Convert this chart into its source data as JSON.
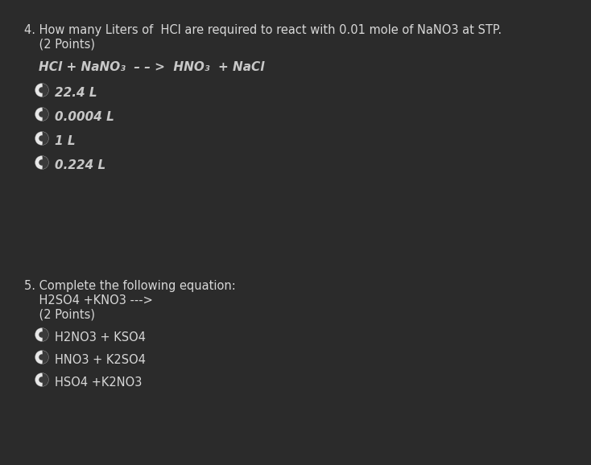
{
  "bg_color": "#2b2b2b",
  "text_color": "#c8c8c8",
  "title_color": "#d8d8d8",
  "eq_color": "#c8c8c8",
  "q4_line1": "4. How many Liters of  HCl are required to react with 0.01 mole of NaNO3 at STP.",
  "q4_line2": "    (2 Points)",
  "q4_equation": "HCl + NaNO₃  – – >  HNO₃  + NaCl",
  "q4_options": [
    "22.4 L",
    "0.0004 L",
    "1 L",
    "0.224 L"
  ],
  "q5_line1": "5. Complete the following equation:",
  "q5_line2": "    H2SO4 +KNO3 --->",
  "q5_line3": "    (2 Points)",
  "q5_options": [
    "H2NO3 + KSO4",
    "HNO3 + K2SO4",
    "HSO4 +K2NO3"
  ],
  "radio_white": "#e8e8e8",
  "radio_dark": "#3a3a3a",
  "radio_outline": "#909090"
}
